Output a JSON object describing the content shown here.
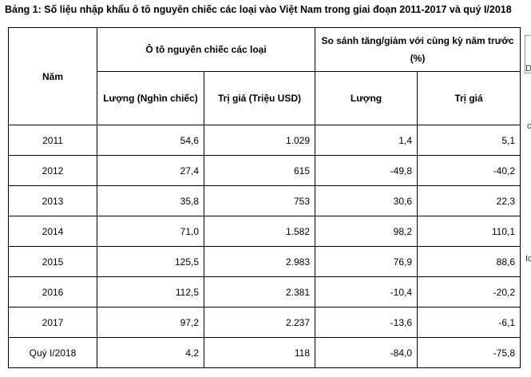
{
  "caption": "Bảng 1: Số liệu nhập khẩu ô tô nguyên chiếc các loại vào Việt Nam trong giai đoạn 2011-2017 và quý I/2018",
  "table": {
    "year_header": "Năm",
    "group1_header": "Ô tô nguyên chiếc các loại",
    "group2_header": "So sánh tăng/giảm với cùng kỳ năm trước (%)",
    "sub_headers": {
      "quantity": "Lượng (Nghìn chiếc)",
      "value": "Trị giá (Triệu USD)",
      "quantity_change": "Lượng",
      "value_change": "Trị giá"
    },
    "rows": [
      {
        "year": "2011",
        "quantity": "54,6",
        "value": "1.029",
        "quantity_change": "1,4",
        "value_change": "5,1"
      },
      {
        "year": "2012",
        "quantity": "27,4",
        "value": "615",
        "quantity_change": "-49,8",
        "value_change": "-40,2"
      },
      {
        "year": "2013",
        "quantity": "35,8",
        "value": "753",
        "quantity_change": "30,6",
        "value_change": "22,3"
      },
      {
        "year": "2014",
        "quantity": "71,0",
        "value": "1.582",
        "quantity_change": "98,2",
        "value_change": "110,1"
      },
      {
        "year": "2015",
        "quantity": "125,5",
        "value": "2.983",
        "quantity_change": "76,9",
        "value_change": "88,6"
      },
      {
        "year": "2016",
        "quantity": "112,5",
        "value": "2.381",
        "quantity_change": "-10,4",
        "value_change": "-20,2"
      },
      {
        "year": "2017",
        "quantity": "97,2",
        "value": "2.237",
        "quantity_change": "-13,6",
        "value_change": "-6,1"
      },
      {
        "year": "Quý I/2018",
        "quantity": "4,2",
        "value": "118",
        "quantity_change": "-84,0",
        "value_change": "-75,8"
      }
    ]
  },
  "edge": {
    "glyph_top": "D",
    "glyph_mid": "c",
    "glyph_low": "Ic"
  }
}
